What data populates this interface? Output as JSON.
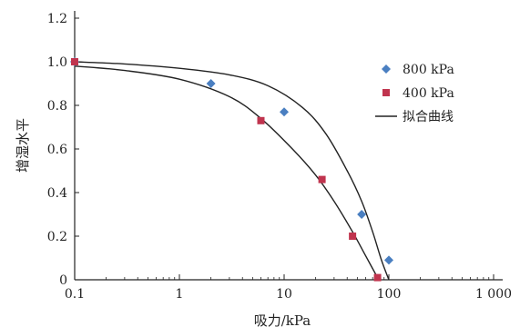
{
  "chart_data": {
    "type": "scatter",
    "xlabel": "吸力/kPa",
    "ylabel": "增湿水平",
    "x_scale": "log",
    "xlim": [
      0.1,
      1000
    ],
    "ylim": [
      0,
      1.2
    ],
    "x_ticks": [
      0.1,
      1,
      10,
      100,
      1000
    ],
    "x_tick_labels": [
      "0.1",
      "1",
      "10",
      "100",
      "1 000"
    ],
    "y_ticks": [
      0,
      0.2,
      0.4,
      0.6,
      0.8,
      1.0,
      1.2
    ],
    "y_tick_labels": [
      "0",
      "0.2",
      "0.4",
      "0.6",
      "0.8",
      "1.0",
      "1.2"
    ],
    "grid": false,
    "legend_position": "right",
    "series": [
      {
        "name": "800 kPa",
        "marker": "diamond",
        "color": "#4a7fc1",
        "points": [
          [
            0.1,
            1.0
          ],
          [
            2,
            0.9
          ],
          [
            10,
            0.77
          ],
          [
            55,
            0.3
          ],
          [
            100,
            0.09
          ]
        ]
      },
      {
        "name": "400 kPa",
        "marker": "square",
        "color": "#c0344e",
        "points": [
          [
            0.1,
            1.0
          ],
          [
            6,
            0.73
          ],
          [
            23,
            0.46
          ],
          [
            45,
            0.2
          ],
          [
            78,
            0.01
          ]
        ]
      },
      {
        "name": "拟合曲线",
        "type": "line",
        "color": "#222222",
        "curves": [
          [
            [
              0.1,
              1.0
            ],
            [
              0.3,
              0.99
            ],
            [
              1,
              0.97
            ],
            [
              3,
              0.94
            ],
            [
              7,
              0.89
            ],
            [
              15,
              0.79
            ],
            [
              25,
              0.67
            ],
            [
              40,
              0.5
            ],
            [
              55,
              0.36
            ],
            [
              70,
              0.22
            ],
            [
              85,
              0.09
            ],
            [
              100,
              0.0
            ]
          ],
          [
            [
              0.1,
              0.98
            ],
            [
              0.3,
              0.96
            ],
            [
              1,
              0.92
            ],
            [
              3,
              0.84
            ],
            [
              6,
              0.74
            ],
            [
              12,
              0.6
            ],
            [
              20,
              0.48
            ],
            [
              30,
              0.36
            ],
            [
              45,
              0.22
            ],
            [
              60,
              0.11
            ],
            [
              80,
              0.0
            ]
          ]
        ]
      }
    ]
  }
}
